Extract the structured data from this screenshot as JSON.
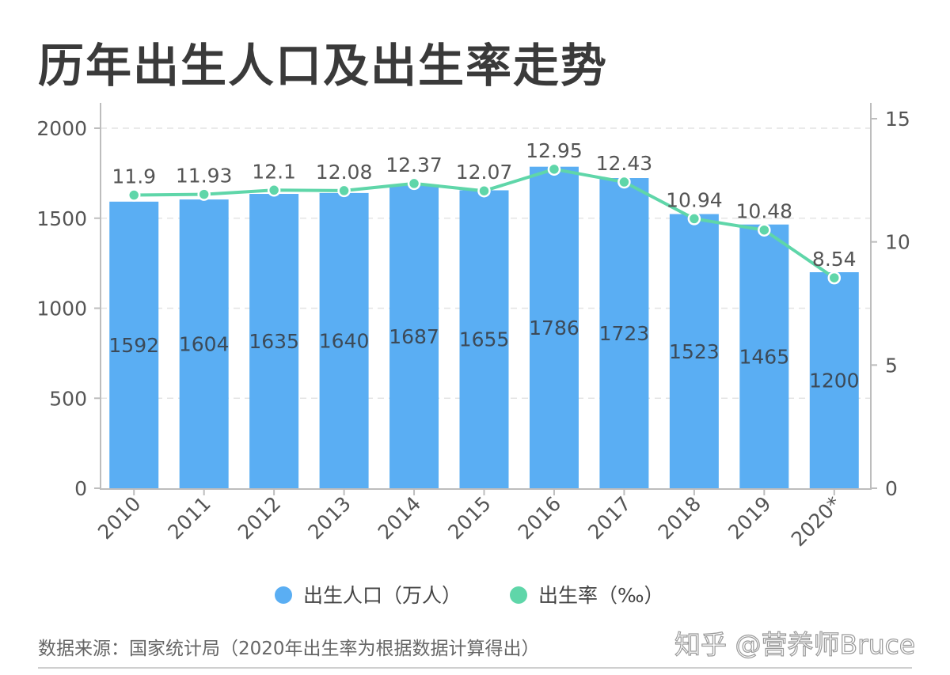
{
  "title": "历年出生人口及出生率走势",
  "source": "数据来源：国家统计局（2020年出生率为根据数据计算得出）",
  "watermark": "知乎 @营养师Bruce",
  "colors": {
    "bar": "#5aaef3",
    "line": "#5fd6a9",
    "text": "#555555",
    "grid": "#e4e4e4",
    "axis": "#bdbdbd"
  },
  "chart_data": {
    "type": "bar+line",
    "categories": [
      "2010",
      "2011",
      "2012",
      "2013",
      "2014",
      "2015",
      "2016",
      "2017",
      "2018",
      "2019",
      "2020*"
    ],
    "series": [
      {
        "name": "出生人口（万人）",
        "type": "bar",
        "axis": "left",
        "values": [
          1592,
          1604,
          1635,
          1640,
          1687,
          1655,
          1786,
          1723,
          1523,
          1465,
          1200
        ]
      },
      {
        "name": "出生率（‰）",
        "type": "line",
        "axis": "right",
        "values": [
          11.9,
          11.93,
          12.1,
          12.08,
          12.37,
          12.07,
          12.95,
          12.43,
          10.94,
          10.48,
          8.54
        ]
      }
    ],
    "y_left": {
      "min": 0,
      "max": 2000,
      "ticks": [
        0,
        500,
        1000,
        1500,
        2000
      ]
    },
    "y_right": {
      "min": 0,
      "max": 15,
      "ticks": [
        0,
        5,
        10,
        15
      ]
    },
    "grid": true,
    "legend_position": "bottom"
  }
}
